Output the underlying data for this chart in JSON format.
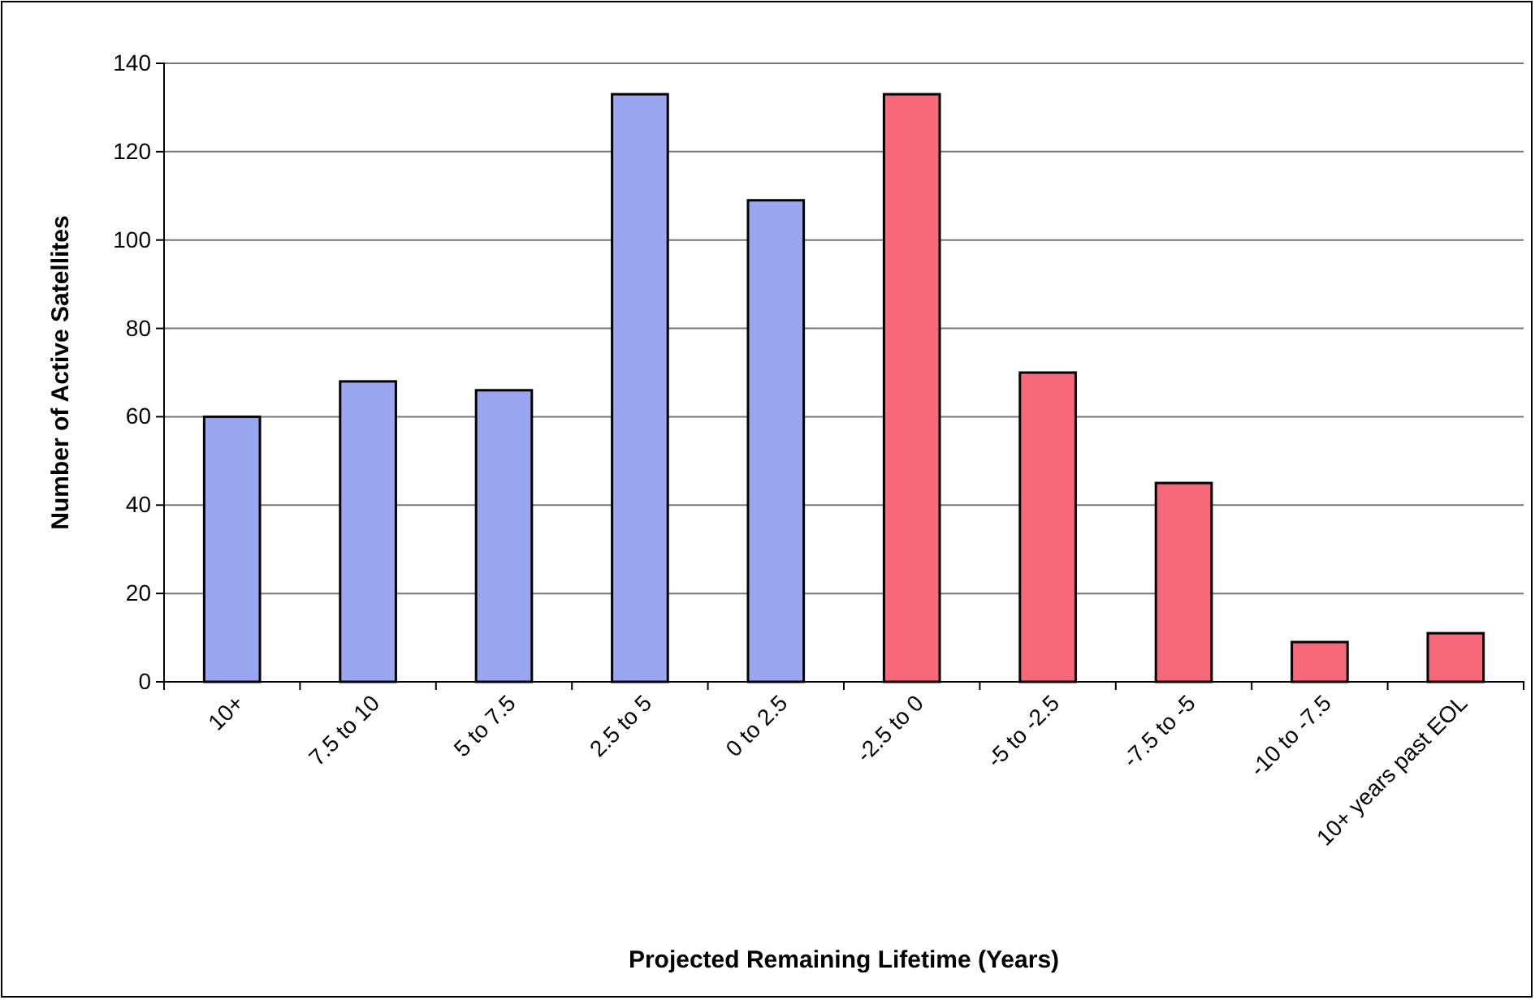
{
  "chart_data": {
    "type": "bar",
    "xlabel": "Projected Remaining Lifetime (Years)",
    "ylabel": "Number of Active Satellites",
    "categories": [
      "10+",
      "7.5 to 10",
      "5 to 7.5",
      "2.5 to 5",
      "0 to 2.5",
      "-2.5 to 0",
      "-5 to -2.5",
      "-7.5 to -5",
      "-10 to -7.5",
      "10+ years past EOL"
    ],
    "values": [
      60,
      68,
      66,
      133,
      109,
      133,
      70,
      45,
      9,
      11
    ],
    "colors": [
      "#9aa6f0",
      "#9aa6f0",
      "#9aa6f0",
      "#9aa6f0",
      "#9aa6f0",
      "#f7687a",
      "#f7687a",
      "#f7687a",
      "#f7687a",
      "#f7687a"
    ],
    "ylim": [
      0,
      140
    ],
    "yticks": [
      0,
      20,
      40,
      60,
      80,
      100,
      120,
      140
    ],
    "grid": "y"
  }
}
